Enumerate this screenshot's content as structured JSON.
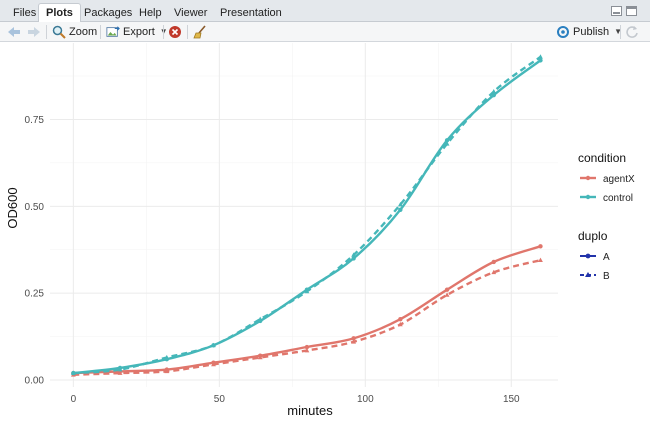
{
  "tabs": [
    {
      "label": "Files",
      "active": false
    },
    {
      "label": "Plots",
      "active": true
    },
    {
      "label": "Packages",
      "active": false
    },
    {
      "label": "Help",
      "active": false
    },
    {
      "label": "Viewer",
      "active": false
    },
    {
      "label": "Presentation",
      "active": false
    }
  ],
  "toolbar": {
    "zoom_label": "Zoom",
    "export_label": "Export",
    "publish_label": "Publish"
  },
  "colors": {
    "agentX": "#e0766c",
    "control": "#45b7b9",
    "duplo_legend": "#2233aa"
  },
  "chart_data": {
    "type": "line",
    "xlabel": "minutes",
    "ylabel": "OD600",
    "xlim": [
      -8,
      166
    ],
    "ylim": [
      -0.02,
      0.97
    ],
    "x_ticks": [
      0,
      50,
      100,
      150
    ],
    "x_tick_labels": [
      "0",
      "50",
      "100",
      "150"
    ],
    "y_ticks": [
      0,
      0.25,
      0.5,
      0.75
    ],
    "y_tick_labels": [
      "0.00",
      "0.25",
      "0.50",
      "0.75"
    ],
    "grid": true,
    "legend_position": "right",
    "legends": [
      {
        "title": "condition",
        "items": [
          "agentX",
          "control"
        ]
      },
      {
        "title": "duplo",
        "items": [
          "A",
          "B"
        ]
      }
    ],
    "series": [
      {
        "name": "agentX",
        "duplo": "A",
        "dash": false,
        "x": [
          0,
          16,
          32,
          48,
          64,
          80,
          96,
          112,
          128,
          144,
          160
        ],
        "y": [
          0.02,
          0.025,
          0.03,
          0.05,
          0.07,
          0.095,
          0.12,
          0.175,
          0.26,
          0.34,
          0.385
        ]
      },
      {
        "name": "agentX",
        "duplo": "B",
        "dash": true,
        "x": [
          0,
          16,
          32,
          48,
          64,
          80,
          96,
          112,
          128,
          144,
          160
        ],
        "y": [
          0.015,
          0.02,
          0.025,
          0.045,
          0.065,
          0.085,
          0.11,
          0.16,
          0.245,
          0.31,
          0.345
        ]
      },
      {
        "name": "control",
        "duplo": "A",
        "dash": false,
        "x": [
          0,
          16,
          32,
          48,
          64,
          80,
          96,
          112,
          128,
          144,
          160
        ],
        "y": [
          0.02,
          0.035,
          0.06,
          0.1,
          0.17,
          0.26,
          0.35,
          0.49,
          0.69,
          0.82,
          0.92
        ]
      },
      {
        "name": "control",
        "duplo": "B",
        "dash": true,
        "x": [
          0,
          16,
          32,
          48,
          64,
          80,
          96,
          112,
          128,
          144,
          160
        ],
        "y": [
          0.02,
          0.03,
          0.065,
          0.1,
          0.175,
          0.255,
          0.36,
          0.505,
          0.68,
          0.83,
          0.93
        ]
      }
    ]
  }
}
